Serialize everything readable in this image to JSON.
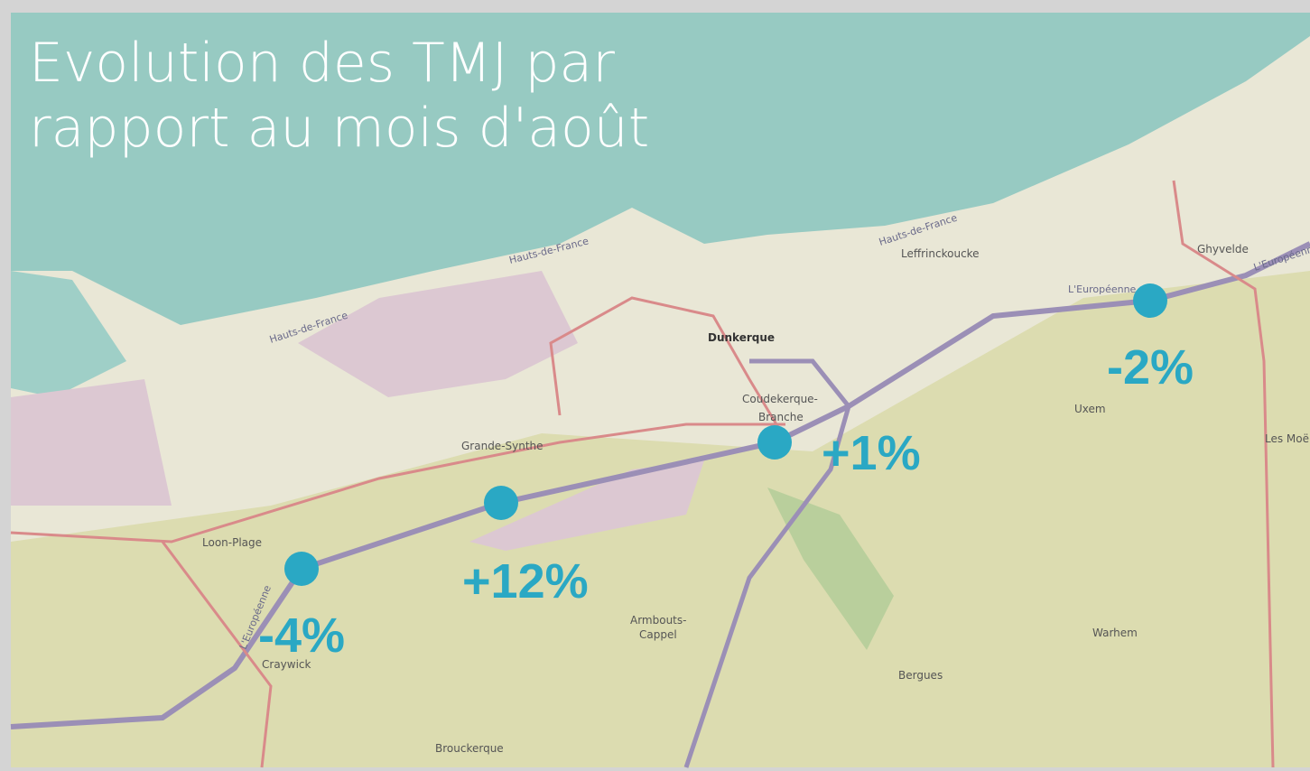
{
  "title": {
    "line1": "Evolution des TMJ par",
    "line2": "rapport au mois d'août"
  },
  "markers": [
    {
      "label": "-4%"
    },
    {
      "label": "+12%"
    },
    {
      "label": "+1%"
    },
    {
      "label": "-2%"
    }
  ],
  "places": [
    "Dunkerque",
    "Coudekerque-",
    "Branche",
    "Grande-Synthe",
    "Loon-Plage",
    "Craywick",
    "Armbouts-",
    "Cappel",
    "Brouckerque",
    "Bergues",
    "Warhem",
    "Uxem",
    "Ghyvelde",
    "Leffrinckoucke",
    "Les Moëres"
  ],
  "roads": [
    "Hauts-de-France",
    "Hauts-de-France",
    "Hauts-de-France",
    "L'Européenne",
    "L'Européenne",
    "L'Européenne"
  ]
}
